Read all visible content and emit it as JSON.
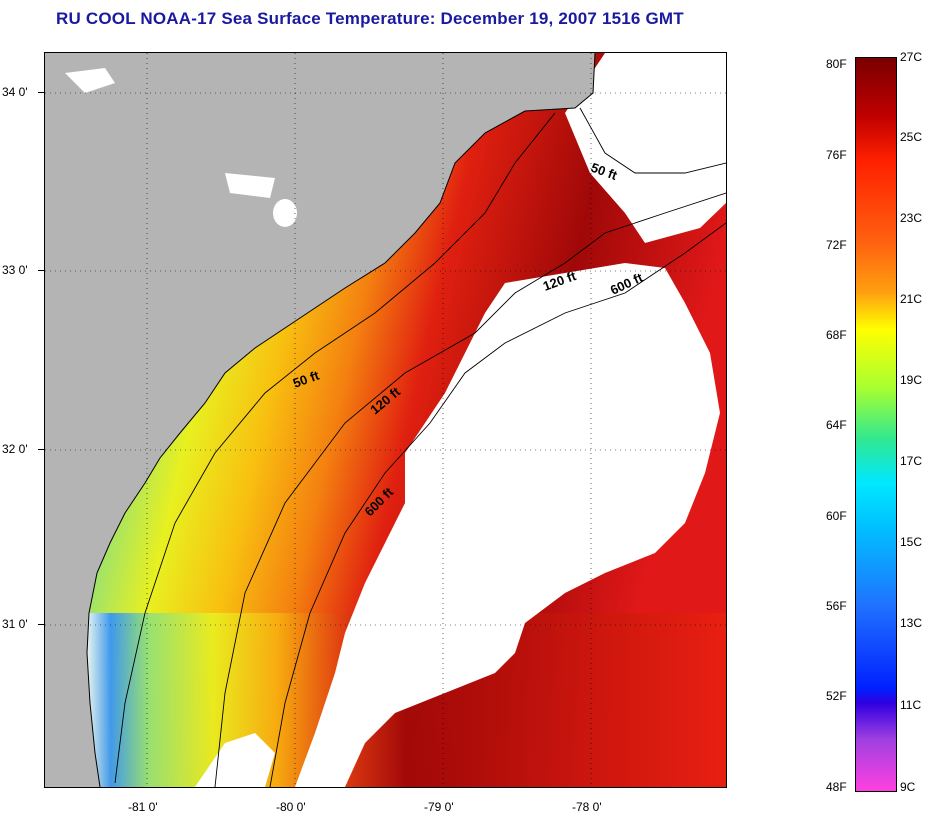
{
  "title": "RU COOL  NOAA-17  Sea Surface Temperature:  December 19, 2007 1516 GMT",
  "lat_labels": [
    "34 0'",
    "33 0'",
    "32 0'",
    "31 0'"
  ],
  "lon_labels": [
    "-81 0'",
    "-80 0'",
    "-79 0'",
    "-78 0'"
  ],
  "contour_labels": [
    "50 ft",
    "50 ft",
    "120 ft",
    "120 ft",
    "600 ft",
    "600 ft"
  ],
  "colorbar": {
    "fahrenheit": [
      "80F",
      "76F",
      "72F",
      "68F",
      "64F",
      "60F",
      "56F",
      "52F",
      "48F"
    ],
    "celsius": [
      "27C",
      "25C",
      "23C",
      "21C",
      "19C",
      "17C",
      "15C",
      "13C",
      "11C",
      "9C"
    ]
  },
  "colors": {
    "land": "#b4b4b4",
    "cloud": "#ffffff",
    "title": "#1a1aa0"
  }
}
